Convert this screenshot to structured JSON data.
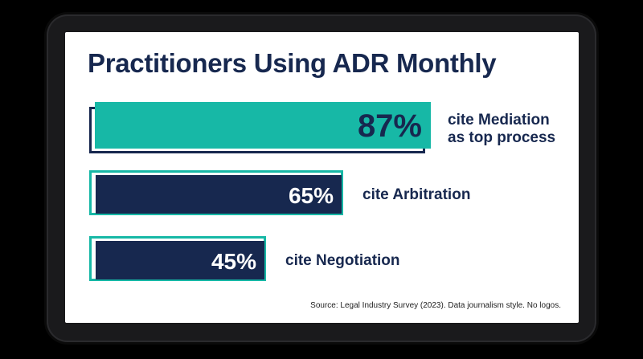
{
  "chart_data": {
    "type": "bar",
    "title": "Practitioners Using ADR Monthly",
    "xlabel": "",
    "ylabel": "",
    "xlim": [
      0,
      100
    ],
    "grid": false,
    "legend": "none",
    "bars": [
      {
        "value": 87,
        "label": "87%",
        "caption": [
          "cite Mediation",
          "as top process"
        ],
        "highlight": true
      },
      {
        "value": 65,
        "label": "65%",
        "caption": [
          "cite Arbitration"
        ],
        "highlight": false
      },
      {
        "value": 45,
        "label": "45%",
        "caption": [
          "cite Negotiation"
        ],
        "highlight": false
      }
    ],
    "source": "Source: Legal Industry Survey (2023). Data journalism style. No logos."
  },
  "colors": {
    "teal": "#17b8a6",
    "navy": "#17284f",
    "white": "#ffffff"
  }
}
